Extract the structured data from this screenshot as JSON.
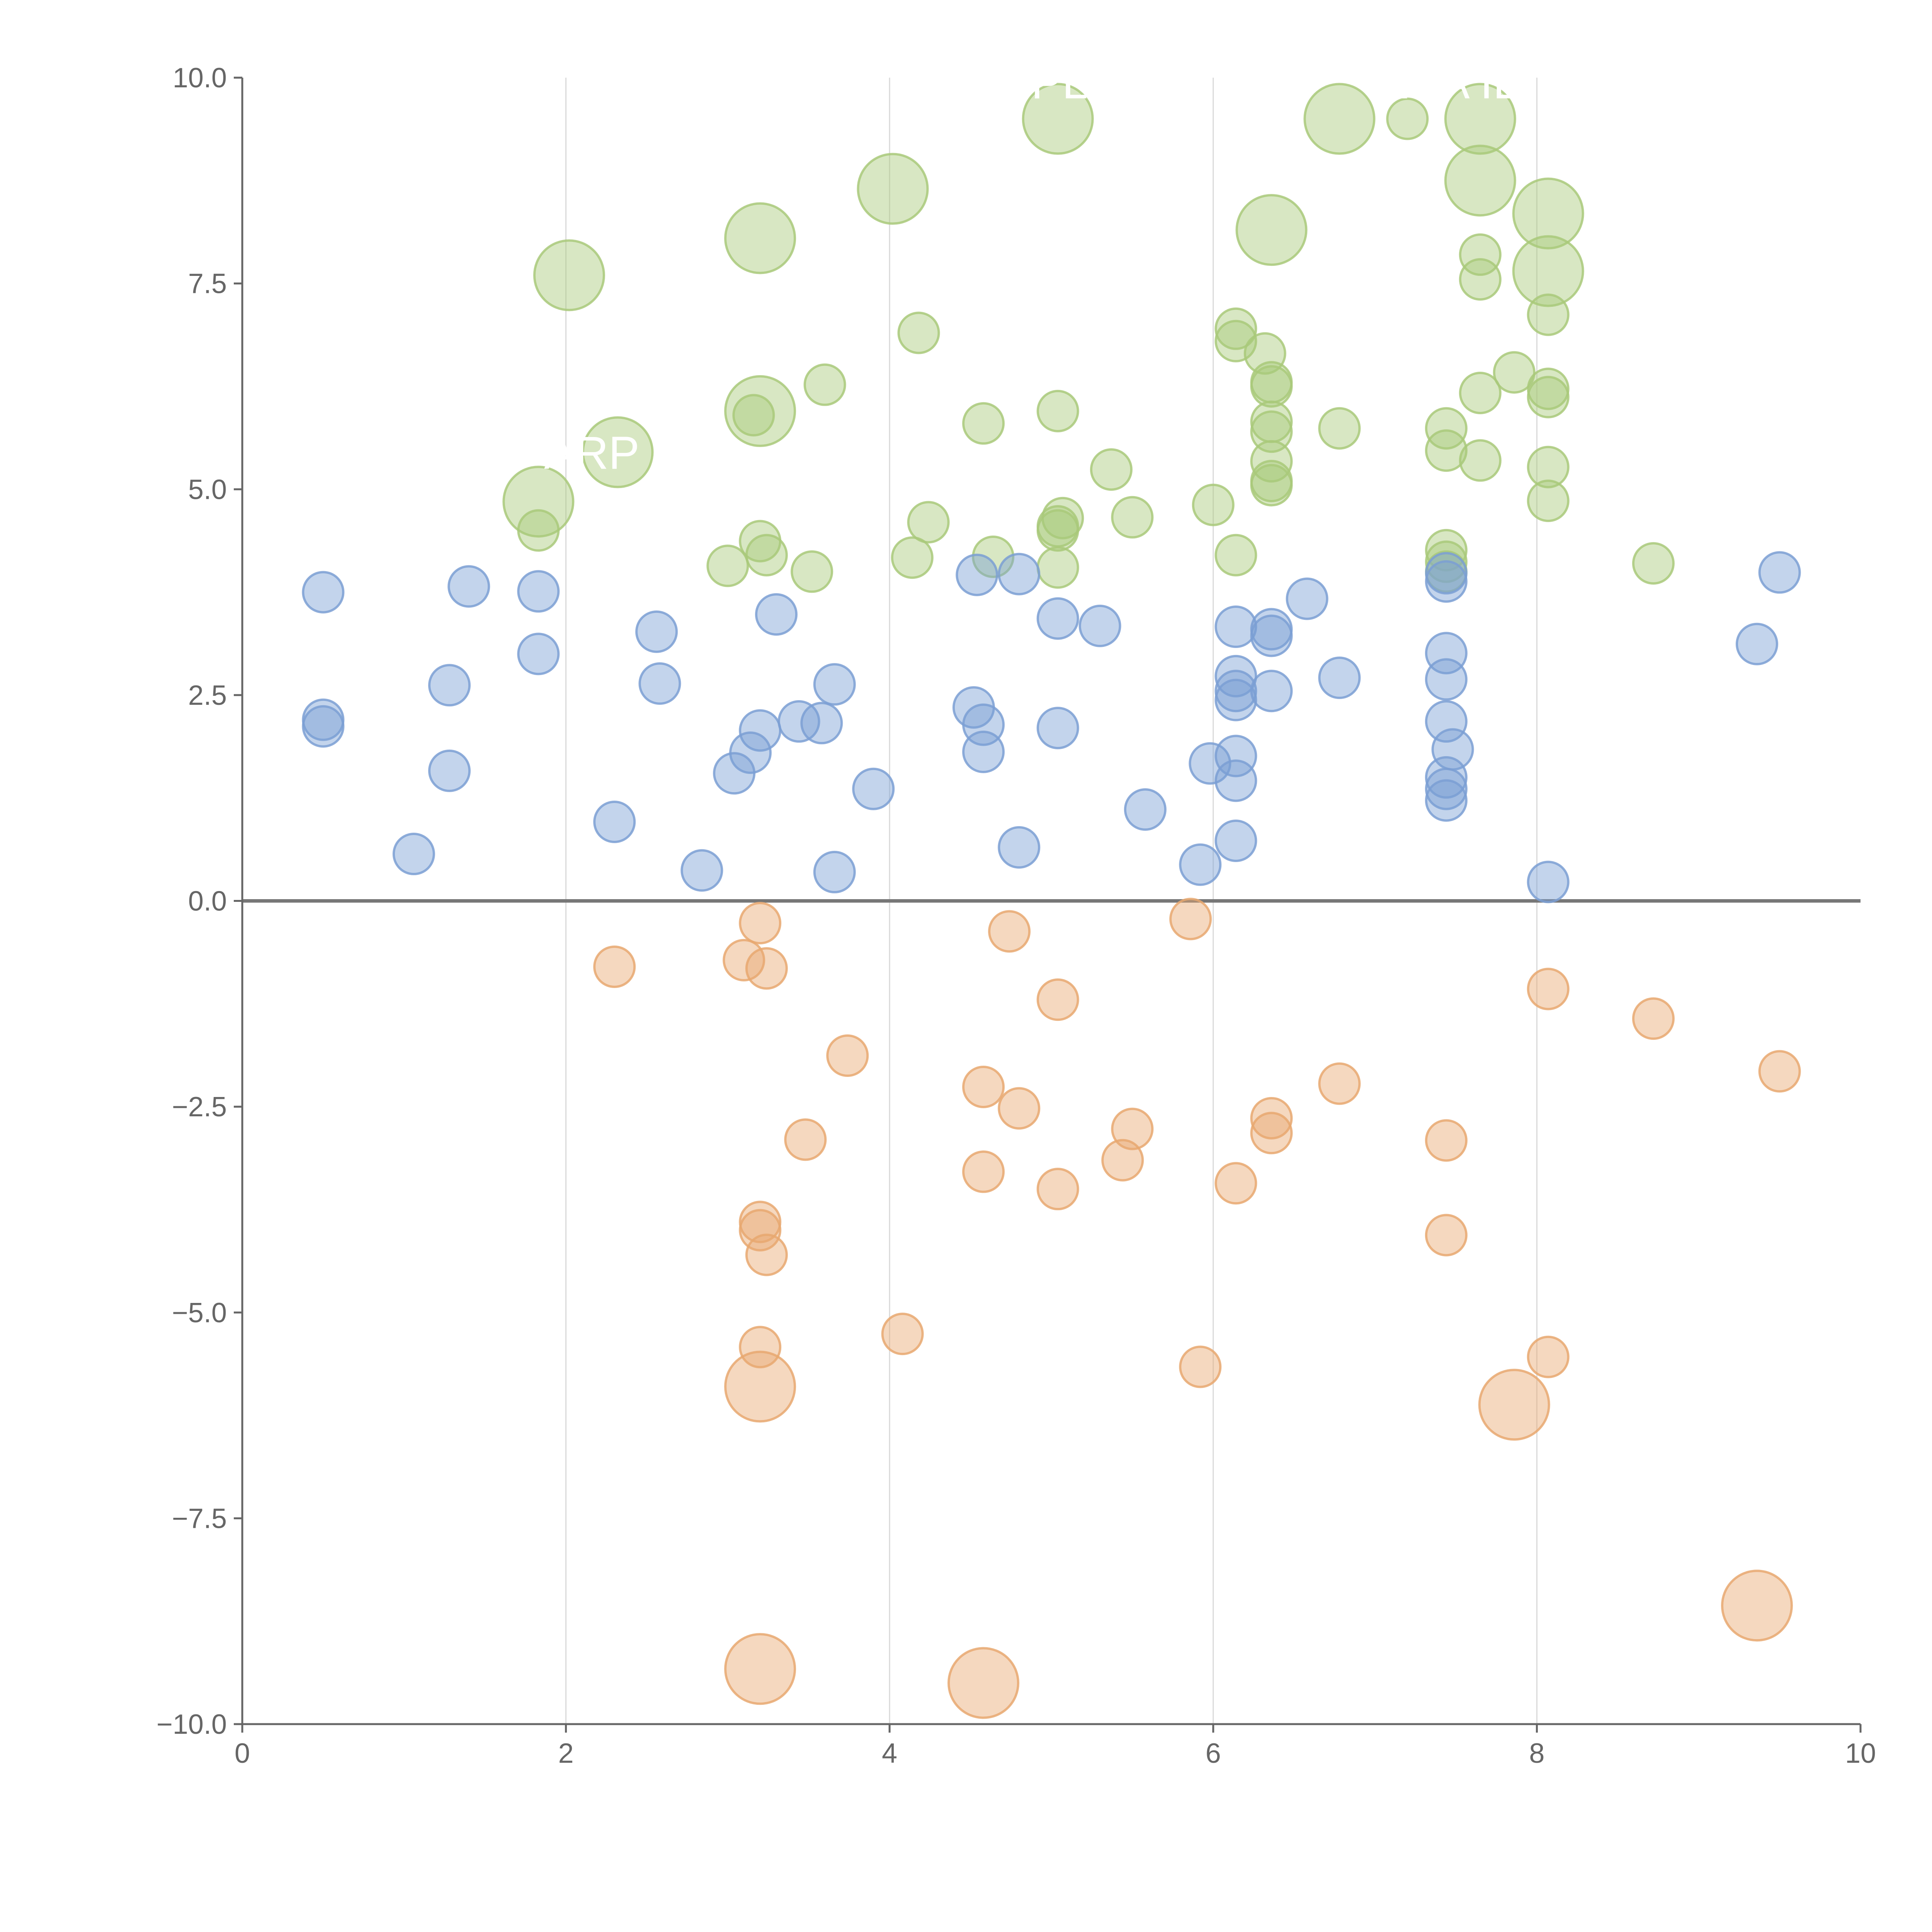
{
  "chart_data": {
    "type": "scatter",
    "title": "",
    "xlabel": "",
    "ylabel": "",
    "xlim": [
      0,
      10
    ],
    "ylim": [
      -10,
      10
    ],
    "x_ticks": [
      "0",
      "2",
      "4",
      "6",
      "8",
      "10"
    ],
    "y_ticks": [
      "10.0",
      "7.5",
      "5.0",
      "2.5",
      "0.0",
      "−2.5",
      "−5.0",
      "−7.5",
      "−10.0"
    ],
    "x_grid": true,
    "zero_line": true,
    "series": [
      {
        "name": "green",
        "color": "#a9c97a",
        "points": [
          {
            "x": 2.02,
            "y": 7.6,
            "s": "large"
          },
          {
            "x": 3.2,
            "y": 8.05,
            "s": "large"
          },
          {
            "x": 4.02,
            "y": 8.65,
            "s": "large"
          },
          {
            "x": 5.04,
            "y": 9.5,
            "s": "large"
          },
          {
            "x": 6.78,
            "y": 9.5,
            "s": "large"
          },
          {
            "x": 7.2,
            "y": 9.5,
            "s": "small"
          },
          {
            "x": 7.65,
            "y": 9.5,
            "s": "large"
          },
          {
            "x": 7.65,
            "y": 8.75,
            "s": "large"
          },
          {
            "x": 6.36,
            "y": 8.15,
            "s": "large"
          },
          {
            "x": 8.07,
            "y": 8.35,
            "s": "large"
          },
          {
            "x": 8.07,
            "y": 7.65,
            "s": "large"
          },
          {
            "x": 3.2,
            "y": 5.95,
            "s": "large"
          },
          {
            "x": 2.32,
            "y": 5.45,
            "s": "large"
          },
          {
            "x": 1.83,
            "y": 4.85,
            "s": "large"
          },
          {
            "x": 7.65,
            "y": 7.85,
            "s": "small"
          },
          {
            "x": 7.65,
            "y": 7.55,
            "s": "small"
          },
          {
            "x": 8.07,
            "y": 7.12,
            "s": "small"
          },
          {
            "x": 6.14,
            "y": 6.95,
            "s": "small"
          },
          {
            "x": 6.14,
            "y": 6.8,
            "s": "small"
          },
          {
            "x": 4.18,
            "y": 6.9,
            "s": "small"
          },
          {
            "x": 6.32,
            "y": 6.65,
            "s": "small"
          },
          {
            "x": 7.86,
            "y": 6.42,
            "s": "small"
          },
          {
            "x": 3.6,
            "y": 6.27,
            "s": "small"
          },
          {
            "x": 6.36,
            "y": 6.3,
            "s": "small"
          },
          {
            "x": 6.36,
            "y": 6.25,
            "s": "small"
          },
          {
            "x": 8.07,
            "y": 6.22,
            "s": "small"
          },
          {
            "x": 7.65,
            "y": 6.17,
            "s": "small"
          },
          {
            "x": 8.07,
            "y": 6.12,
            "s": "small"
          },
          {
            "x": 5.04,
            "y": 5.95,
            "s": "small"
          },
          {
            "x": 3.16,
            "y": 5.9,
            "s": "small"
          },
          {
            "x": 6.36,
            "y": 5.82,
            "s": "small"
          },
          {
            "x": 4.58,
            "y": 5.8,
            "s": "small"
          },
          {
            "x": 6.78,
            "y": 5.74,
            "s": "small"
          },
          {
            "x": 7.44,
            "y": 5.74,
            "s": "small"
          },
          {
            "x": 6.36,
            "y": 5.7,
            "s": "small"
          },
          {
            "x": 7.44,
            "y": 5.47,
            "s": "small"
          },
          {
            "x": 6.36,
            "y": 5.34,
            "s": "small"
          },
          {
            "x": 7.65,
            "y": 5.35,
            "s": "small"
          },
          {
            "x": 8.07,
            "y": 5.27,
            "s": "small"
          },
          {
            "x": 5.37,
            "y": 5.24,
            "s": "small"
          },
          {
            "x": 6.36,
            "y": 5.1,
            "s": "small"
          },
          {
            "x": 6.36,
            "y": 5.05,
            "s": "small"
          },
          {
            "x": 8.07,
            "y": 4.86,
            "s": "small"
          },
          {
            "x": 6.0,
            "y": 4.81,
            "s": "small"
          },
          {
            "x": 5.5,
            "y": 4.66,
            "s": "small"
          },
          {
            "x": 5.07,
            "y": 4.65,
            "s": "small"
          },
          {
            "x": 4.24,
            "y": 4.6,
            "s": "small"
          },
          {
            "x": 5.04,
            "y": 4.55,
            "s": "small"
          },
          {
            "x": 5.04,
            "y": 4.5,
            "s": "small"
          },
          {
            "x": 1.83,
            "y": 4.5,
            "s": "small"
          },
          {
            "x": 3.2,
            "y": 4.37,
            "s": "small"
          },
          {
            "x": 7.44,
            "y": 4.26,
            "s": "small"
          },
          {
            "x": 3.24,
            "y": 4.2,
            "s": "small"
          },
          {
            "x": 6.14,
            "y": 4.2,
            "s": "small"
          },
          {
            "x": 4.64,
            "y": 4.18,
            "s": "small"
          },
          {
            "x": 4.14,
            "y": 4.17,
            "s": "small"
          },
          {
            "x": 7.44,
            "y": 4.12,
            "s": "small"
          },
          {
            "x": 8.72,
            "y": 4.1,
            "s": "small"
          },
          {
            "x": 3.0,
            "y": 4.07,
            "s": "small"
          },
          {
            "x": 5.04,
            "y": 4.05,
            "s": "small"
          },
          {
            "x": 3.52,
            "y": 4.0,
            "s": "small"
          },
          {
            "x": 7.44,
            "y": 4.0,
            "s": "small"
          }
        ]
      },
      {
        "name": "blue",
        "color": "#7b9fd4",
        "points": [
          {
            "x": 0.5,
            "y": 3.75
          },
          {
            "x": 1.4,
            "y": 3.82
          },
          {
            "x": 1.83,
            "y": 3.76
          },
          {
            "x": 1.83,
            "y": 3.0
          },
          {
            "x": 0.5,
            "y": 2.2
          },
          {
            "x": 0.5,
            "y": 2.12
          },
          {
            "x": 1.28,
            "y": 2.62
          },
          {
            "x": 1.28,
            "y": 1.58
          },
          {
            "x": 1.06,
            "y": 0.57
          },
          {
            "x": 2.56,
            "y": 3.27
          },
          {
            "x": 2.58,
            "y": 2.64
          },
          {
            "x": 2.3,
            "y": 0.96
          },
          {
            "x": 2.84,
            "y": 0.37
          },
          {
            "x": 3.3,
            "y": 3.48
          },
          {
            "x": 3.66,
            "y": 2.63
          },
          {
            "x": 3.2,
            "y": 2.07
          },
          {
            "x": 3.44,
            "y": 2.18
          },
          {
            "x": 3.58,
            "y": 2.16
          },
          {
            "x": 3.14,
            "y": 1.8
          },
          {
            "x": 3.04,
            "y": 1.55
          },
          {
            "x": 3.9,
            "y": 1.36
          },
          {
            "x": 3.66,
            "y": 0.35
          },
          {
            "x": 4.54,
            "y": 3.96
          },
          {
            "x": 4.8,
            "y": 3.97
          },
          {
            "x": 5.04,
            "y": 3.43
          },
          {
            "x": 5.3,
            "y": 3.34
          },
          {
            "x": 4.52,
            "y": 2.35
          },
          {
            "x": 4.58,
            "y": 2.14
          },
          {
            "x": 4.58,
            "y": 1.81
          },
          {
            "x": 5.04,
            "y": 2.1
          },
          {
            "x": 4.8,
            "y": 0.65
          },
          {
            "x": 5.58,
            "y": 1.11
          },
          {
            "x": 5.92,
            "y": 0.44
          },
          {
            "x": 5.98,
            "y": 1.67
          },
          {
            "x": 6.14,
            "y": 3.33
          },
          {
            "x": 6.14,
            "y": 2.73
          },
          {
            "x": 6.14,
            "y": 2.55
          },
          {
            "x": 6.14,
            "y": 2.44
          },
          {
            "x": 6.14,
            "y": 1.76
          },
          {
            "x": 6.14,
            "y": 1.46
          },
          {
            "x": 6.14,
            "y": 0.73
          },
          {
            "x": 6.36,
            "y": 3.3
          },
          {
            "x": 6.36,
            "y": 3.22
          },
          {
            "x": 6.36,
            "y": 2.55
          },
          {
            "x": 6.58,
            "y": 3.67
          },
          {
            "x": 6.78,
            "y": 2.71
          },
          {
            "x": 7.44,
            "y": 3.98
          },
          {
            "x": 7.44,
            "y": 3.88
          },
          {
            "x": 7.44,
            "y": 3.01
          },
          {
            "x": 7.44,
            "y": 2.69
          },
          {
            "x": 7.44,
            "y": 2.18
          },
          {
            "x": 7.48,
            "y": 1.84
          },
          {
            "x": 7.44,
            "y": 1.5
          },
          {
            "x": 7.44,
            "y": 1.36
          },
          {
            "x": 7.44,
            "y": 1.22
          },
          {
            "x": 8.07,
            "y": 0.23
          },
          {
            "x": 9.36,
            "y": 3.12
          },
          {
            "x": 9.5,
            "y": 3.99
          }
        ]
      },
      {
        "name": "orange",
        "color": "#e8a870",
        "points": [
          {
            "x": 3.2,
            "y": -0.27,
            "s": "small"
          },
          {
            "x": 4.74,
            "y": -0.37,
            "s": "small"
          },
          {
            "x": 5.86,
            "y": -0.22,
            "s": "small"
          },
          {
            "x": 2.3,
            "y": -0.8,
            "s": "small"
          },
          {
            "x": 3.1,
            "y": -0.72,
            "s": "small"
          },
          {
            "x": 3.24,
            "y": -0.82,
            "s": "small"
          },
          {
            "x": 5.04,
            "y": -1.2,
            "s": "small"
          },
          {
            "x": 8.07,
            "y": -1.07,
            "s": "small"
          },
          {
            "x": 8.72,
            "y": -1.43,
            "s": "small"
          },
          {
            "x": 3.74,
            "y": -1.88,
            "s": "small"
          },
          {
            "x": 6.78,
            "y": -2.22,
            "s": "small"
          },
          {
            "x": 9.5,
            "y": -2.07,
            "s": "small"
          },
          {
            "x": 4.58,
            "y": -2.26,
            "s": "small"
          },
          {
            "x": 4.8,
            "y": -2.52,
            "s": "small"
          },
          {
            "x": 3.48,
            "y": -2.9,
            "s": "small"
          },
          {
            "x": 5.5,
            "y": -2.77,
            "s": "small"
          },
          {
            "x": 6.36,
            "y": -2.64,
            "s": "small"
          },
          {
            "x": 6.36,
            "y": -2.82,
            "s": "small"
          },
          {
            "x": 7.44,
            "y": -2.91,
            "s": "small"
          },
          {
            "x": 5.44,
            "y": -3.15,
            "s": "small"
          },
          {
            "x": 4.58,
            "y": -3.29,
            "s": "small"
          },
          {
            "x": 6.14,
            "y": -3.43,
            "s": "small"
          },
          {
            "x": 5.04,
            "y": -3.5,
            "s": "small"
          },
          {
            "x": 3.2,
            "y": -3.9,
            "s": "small"
          },
          {
            "x": 3.2,
            "y": -4.0,
            "s": "small"
          },
          {
            "x": 7.44,
            "y": -4.06,
            "s": "small"
          },
          {
            "x": 3.24,
            "y": -4.3,
            "s": "small"
          },
          {
            "x": 4.08,
            "y": -5.26,
            "s": "small"
          },
          {
            "x": 3.2,
            "y": -5.42,
            "s": "small"
          },
          {
            "x": 5.92,
            "y": -5.66,
            "s": "small"
          },
          {
            "x": 8.07,
            "y": -5.54,
            "s": "small"
          },
          {
            "x": 3.2,
            "y": -5.9,
            "s": "large"
          },
          {
            "x": 7.86,
            "y": -6.12,
            "s": "large"
          },
          {
            "x": 9.36,
            "y": -8.56,
            "s": "large"
          },
          {
            "x": 3.2,
            "y": -9.33,
            "s": "large"
          },
          {
            "x": 4.58,
            "y": -9.5,
            "s": "large"
          }
        ]
      }
    ],
    "annotations": [
      {
        "text": "ARP",
        "x": 2.16,
        "y": 5.25
      },
      {
        "text": "PL",
        "x": 5.05,
        "y": 9.75
      },
      {
        "text": "KSA IL",
        "x": 7.45,
        "y": 9.75
      }
    ]
  }
}
